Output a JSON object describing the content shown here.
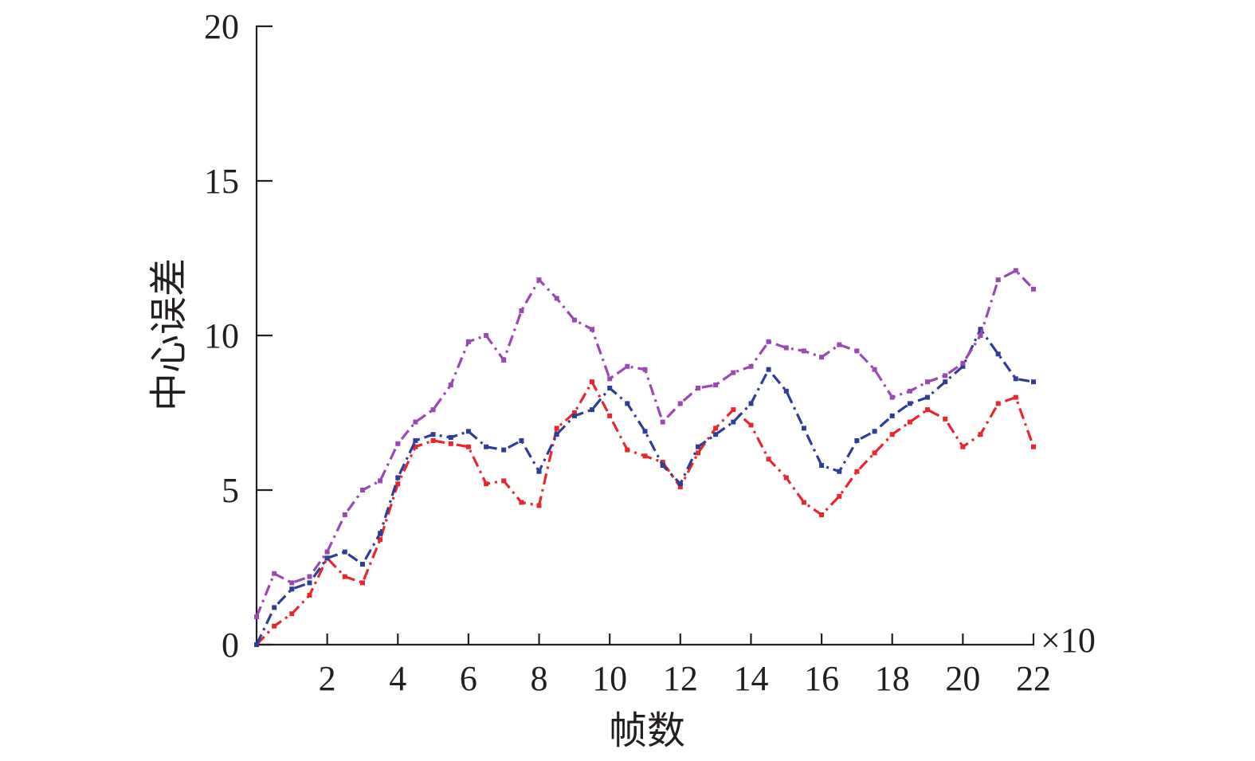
{
  "chart_data": {
    "type": "line",
    "title": "",
    "xlabel": "帧数",
    "ylabel": "中心误差",
    "x_multiplier_label": "×10",
    "xlim": [
      0,
      22
    ],
    "ylim": [
      0,
      20
    ],
    "xticks": [
      "2",
      "4",
      "6",
      "8",
      "10",
      "12",
      "14",
      "16",
      "18",
      "20",
      "22"
    ],
    "yticks": [
      "0",
      "5",
      "10",
      "15",
      "20"
    ],
    "grid": false,
    "legend": "none",
    "x": [
      0,
      0.5,
      1,
      1.5,
      2,
      2.5,
      3,
      3.5,
      4,
      4.5,
      5,
      5.5,
      6,
      6.5,
      7,
      7.5,
      8,
      8.5,
      9,
      9.5,
      10,
      10.5,
      11,
      11.5,
      12,
      12.5,
      13,
      13.5,
      14,
      14.5,
      15,
      15.5,
      16,
      16.5,
      17,
      17.5,
      18,
      18.5,
      19,
      19.5,
      20,
      20.5,
      21,
      21.5,
      22
    ],
    "series": [
      {
        "color": "#e8262e",
        "values": [
          0,
          0.6,
          1.0,
          1.6,
          2.8,
          2.2,
          2.0,
          3.4,
          5.2,
          6.4,
          6.6,
          6.5,
          6.4,
          5.2,
          5.3,
          4.6,
          4.5,
          7.0,
          7.5,
          8.5,
          7.4,
          6.3,
          6.1,
          5.9,
          5.1,
          6.2,
          7.0,
          7.6,
          7.1,
          6.0,
          5.4,
          4.6,
          4.2,
          4.8,
          5.6,
          6.2,
          6.8,
          7.2,
          7.6,
          7.3,
          6.4,
          6.8,
          7.8,
          8.0,
          6.4
        ]
      },
      {
        "color": "#2e3e96",
        "values": [
          0,
          1.2,
          1.8,
          2.0,
          2.8,
          3.0,
          2.6,
          3.6,
          5.4,
          6.6,
          6.8,
          6.7,
          6.9,
          6.4,
          6.3,
          6.6,
          5.6,
          6.8,
          7.4,
          7.6,
          8.3,
          7.8,
          6.9,
          5.8,
          5.2,
          6.4,
          6.8,
          7.2,
          7.8,
          8.9,
          8.2,
          7.0,
          5.8,
          5.6,
          6.6,
          6.9,
          7.4,
          7.8,
          8.0,
          8.5,
          9.0,
          10.2,
          9.4,
          8.6,
          8.5
        ]
      },
      {
        "color": "#9a48b4",
        "values": [
          0.9,
          2.3,
          2.0,
          2.2,
          3.0,
          4.2,
          5.0,
          5.3,
          6.5,
          7.2,
          7.6,
          8.4,
          9.8,
          10.0,
          9.2,
          10.8,
          11.8,
          11.2,
          10.5,
          10.2,
          8.6,
          9.0,
          8.9,
          7.2,
          7.8,
          8.3,
          8.4,
          8.8,
          9.0,
          9.8,
          9.6,
          9.5,
          9.3,
          9.7,
          9.5,
          8.9,
          8.0,
          8.2,
          8.5,
          8.7,
          9.1,
          10.0,
          11.8,
          12.1,
          11.5
        ]
      }
    ]
  }
}
